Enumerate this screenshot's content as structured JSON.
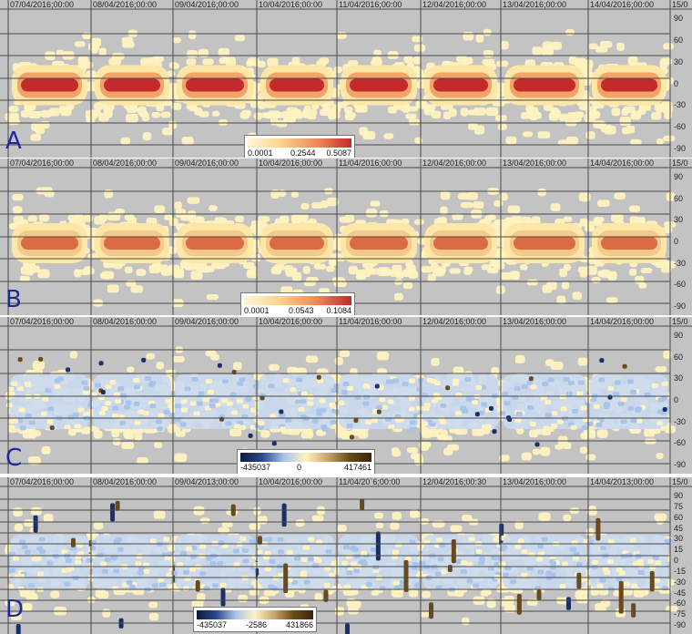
{
  "panels": [
    {
      "letter": "A",
      "dates": [
        "07/04/2016;00:00",
        "08/04/2016;00:00",
        "09/04/2016;00:00",
        "10/04/2016;00:00",
        "11/04/2016;00:00",
        "12/04/2016;00:00",
        "13/04/2016;00:00",
        "14/04/2016;00:00",
        "15/0"
      ],
      "lat_ticks": [
        "90",
        "60",
        "30",
        "0",
        "-30",
        "-60",
        "-90"
      ],
      "legend": [
        "0.0001",
        "0.2544",
        "0.5087"
      ],
      "colormap": "yellow-red"
    },
    {
      "letter": "B",
      "dates": [
        "07/04/2016;00:00",
        "08/04/2016;00:00",
        "09/04/2016;00:00",
        "10/04/2016;00:00",
        "11/04/2016;00:00",
        "12/04/2016;00:00",
        "13/04/2016;00:00",
        "14/04/2016;00:00",
        "15/0"
      ],
      "lat_ticks": [
        "90",
        "60",
        "30",
        "0",
        "-30",
        "-60",
        "-90"
      ],
      "legend": [
        "0.0001",
        "0.0543",
        "0.1084"
      ],
      "colormap": "yellow-red"
    },
    {
      "letter": "C",
      "dates": [
        "07/04/2016;00:00",
        "08/04/2016;00:00",
        "09/04/2016;00:00",
        "10/04/2016;00:00",
        "11/04/2016;00:00",
        "12/04/2016;00:00",
        "13/04/2016;00:00",
        "14/04/2016;00:00",
        "15/0"
      ],
      "lat_ticks": [
        "90",
        "60",
        "30",
        "0",
        "-30",
        "-60",
        "-90"
      ],
      "legend": [
        "-435037",
        "0",
        "417461"
      ],
      "colormap": "blue-yellow-brown"
    },
    {
      "letter": "D",
      "dates": [
        "07/04/2016;00:00",
        "08/04/2016;00:00",
        "09/04/2013;00:00",
        "10/04/2016;00:00",
        "11/04/20`6;00:00",
        "12/04/2016;00:30",
        "13/04/2016;00:00",
        "14/04/2013;00:00",
        "15/0"
      ],
      "lat_ticks": [
        "90",
        "75",
        "60",
        "45",
        "30",
        "15",
        "0",
        "-15",
        "-30",
        "-45",
        "-60",
        "-75",
        "-90"
      ],
      "legend": [
        "-435037",
        "-2586",
        "431866"
      ],
      "colormap": "blue-yellow-brown"
    }
  ],
  "colors": {
    "background": "#c3c3c3",
    "grid": "#4a4a4a",
    "letter": "#1a2a9a",
    "yellow": "#fff2c0",
    "red": "#c42a2a",
    "blue": "#2a4a8a",
    "brown": "#6a4a1a"
  }
}
